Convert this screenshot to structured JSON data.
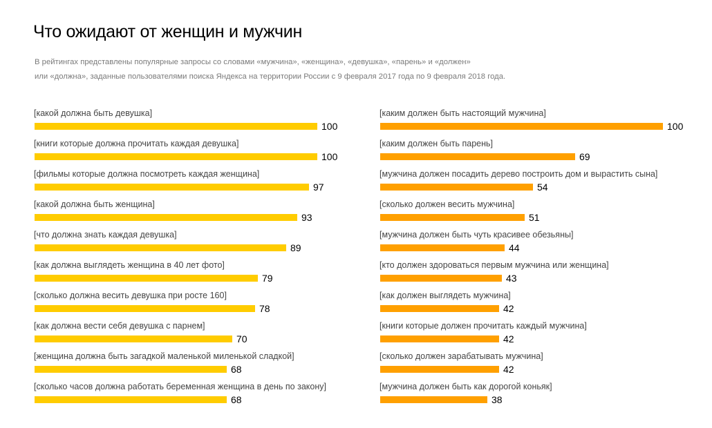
{
  "title": "Что ожидают от женщин и мужчин",
  "subtitle": [
    "В рейтингах представлены популярные запросы со словами «мужчина», «женщина», «девушка», «парень» и «должен»",
    "или «должна», заданные пользователями поиска Яндекса на территории России с 9 февраля 2017 года по 9 февраля 2018 года."
  ],
  "colors": {
    "women": "#FFCC00",
    "men": "#FFA000"
  },
  "chart_data": [
    {
      "type": "bar",
      "orientation": "horizontal",
      "name": "women",
      "xlim": [
        0,
        100
      ],
      "categories": [
        "[какой должна быть девушка]",
        "[книги которые должна прочитать каждая девушка]",
        "[фильмы которые должна посмотреть каждая женщина]",
        "[какой должна быть женщина]",
        "[что должна знать каждая девушка]",
        "[как должна выглядеть женщина в 40 лет фото]",
        "[сколько должна весить девушка при росте 160]",
        "[как должна вести себя девушка с парнем]",
        "[женщина должна быть загадкой маленькой миленькой сладкой]",
        "[сколько часов должна работать беременная женщина в день по закону]"
      ],
      "values": [
        100,
        100,
        97,
        93,
        89,
        79,
        78,
        70,
        68,
        68
      ]
    },
    {
      "type": "bar",
      "orientation": "horizontal",
      "name": "men",
      "xlim": [
        0,
        100
      ],
      "categories": [
        "[каким должен быть настоящий мужчина]",
        "[каким должен быть парень]",
        "[мужчина должен посадить дерево построить дом и вырастить сына]",
        "[сколько должен весить мужчина]",
        "[мужчина должен быть чуть красивее обезьяны]",
        "[кто должен здороваться первым мужчина или женщина]",
        "[как должен выглядеть мужчина]",
        "[книги которые должен прочитать каждый мужчина]",
        "[сколько должен зарабатывать мужчина]",
        "[мужчина должен быть как дорогой коньяк]"
      ],
      "values": [
        100,
        69,
        54,
        51,
        44,
        43,
        42,
        42,
        42,
        38
      ]
    }
  ]
}
